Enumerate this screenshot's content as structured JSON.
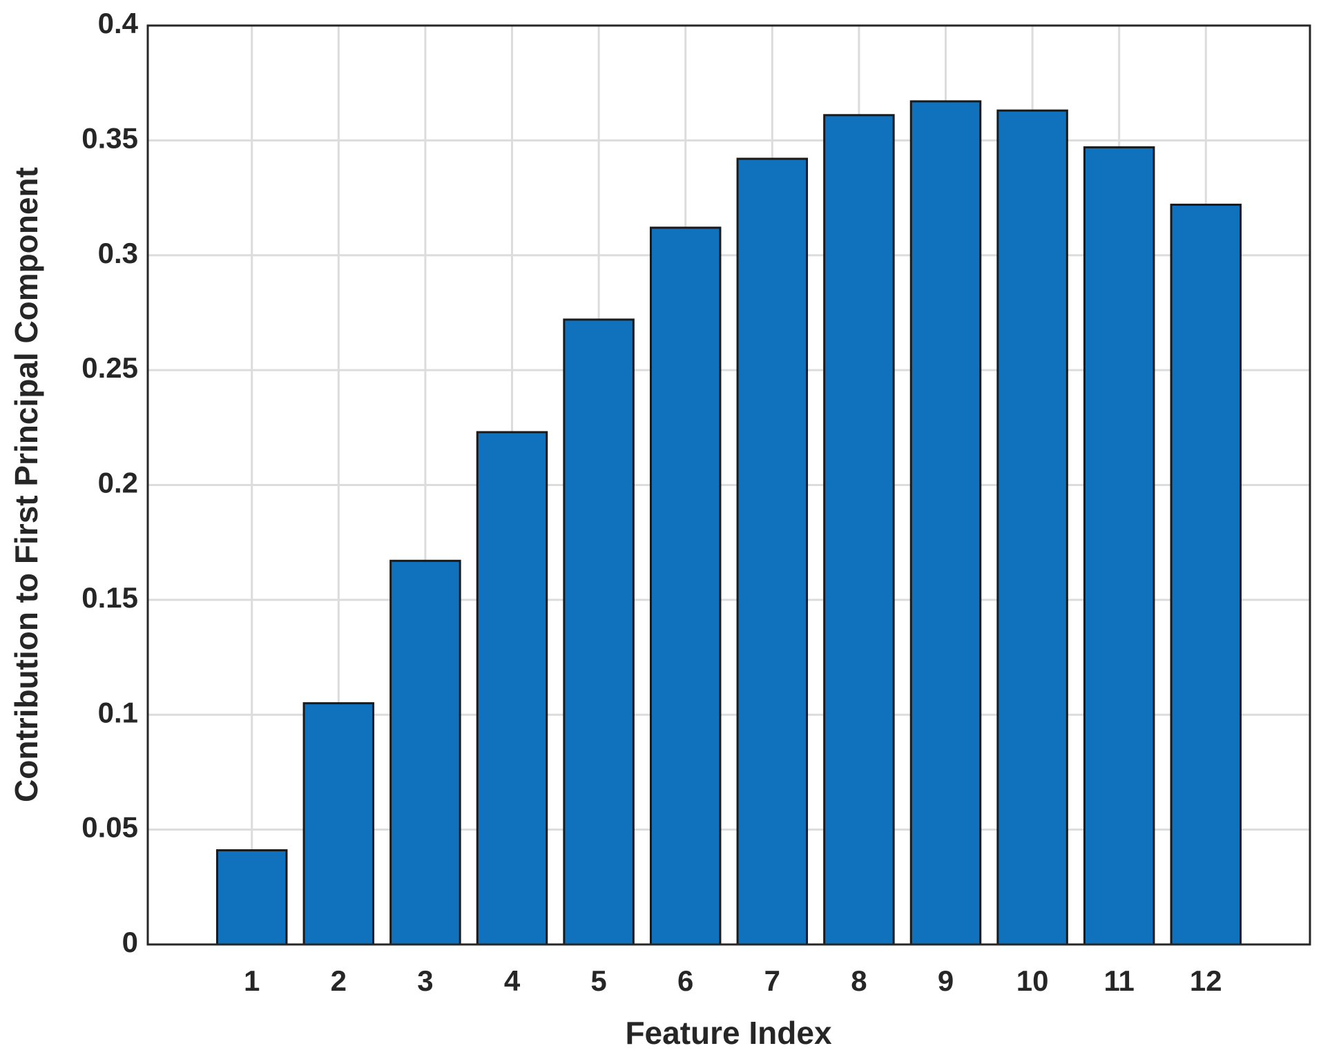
{
  "chart_data": {
    "type": "bar",
    "x_label": "Feature Index",
    "y_label": "Contribution to First Principal Component",
    "x": [
      1,
      2,
      3,
      4,
      5,
      6,
      7,
      8,
      9,
      10,
      11,
      12
    ],
    "values": [
      0.041,
      0.105,
      0.167,
      0.223,
      0.272,
      0.312,
      0.342,
      0.361,
      0.367,
      0.363,
      0.347,
      0.322
    ],
    "color": "#1071bd",
    "xlim": [
      -0.2,
      13.2
    ],
    "xticks": [
      1,
      2,
      3,
      4,
      5,
      6,
      7,
      8,
      9,
      10,
      11,
      12
    ],
    "ylim": [
      0,
      0.4
    ],
    "yticks": [
      0,
      0.05,
      0.1,
      0.15,
      0.2,
      0.25,
      0.3,
      0.35,
      0.4
    ],
    "grid": true
  }
}
